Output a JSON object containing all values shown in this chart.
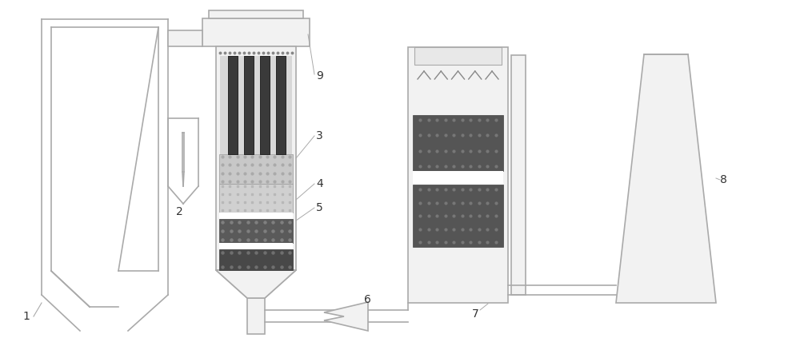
{
  "bg_color": "#ffffff",
  "lc": "#aaaaaa",
  "lc2": "#999999",
  "dark": "#555555",
  "darker": "#444444",
  "light_fill": "#f2f2f2",
  "med_fill": "#cccccc",
  "label_color": "#333333",
  "label_fs": 10
}
